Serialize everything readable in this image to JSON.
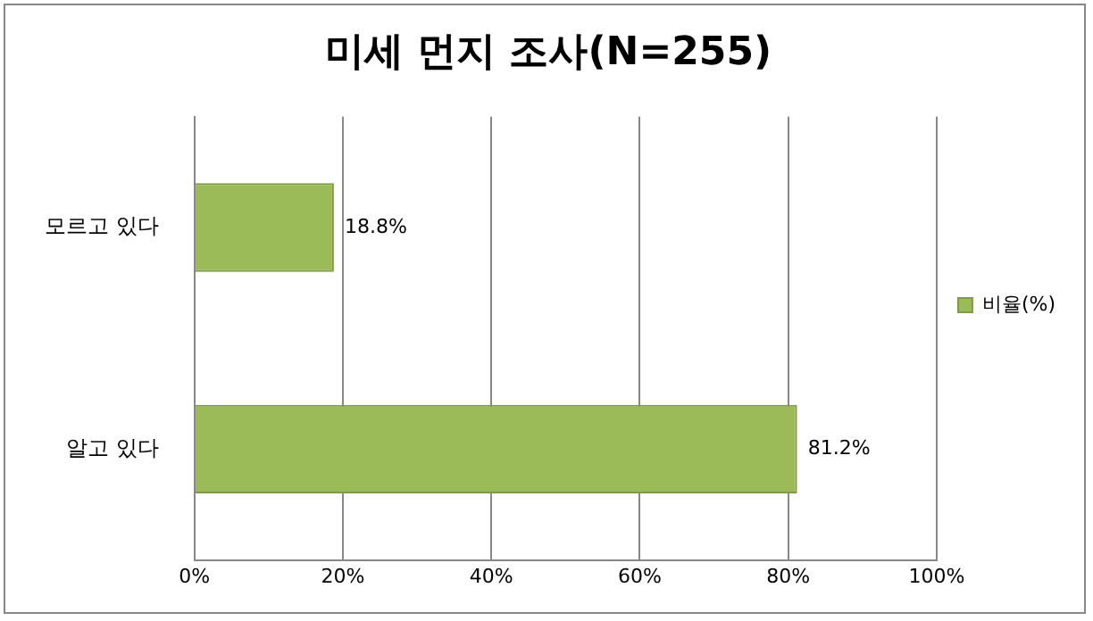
{
  "chart_data": {
    "type": "bar",
    "orientation": "horizontal",
    "title": "미세 먼지 조사(N=255)",
    "categories": [
      "모르고 있다",
      "알고 있다"
    ],
    "series": [
      {
        "name": "비율(%)",
        "color": "#9bbb59",
        "values": [
          18.8,
          81.2
        ],
        "value_labels": [
          "18.8%",
          "81.2%"
        ]
      }
    ],
    "xlim": [
      0,
      100
    ],
    "xticks": [
      {
        "value": 0,
        "label": "0%"
      },
      {
        "value": 20,
        "label": "20%"
      },
      {
        "value": 40,
        "label": "40%"
      },
      {
        "value": 60,
        "label": "60%"
      },
      {
        "value": 80,
        "label": "80%"
      },
      {
        "value": 100,
        "label": "100%"
      }
    ],
    "grid": "x",
    "legend": "right"
  }
}
